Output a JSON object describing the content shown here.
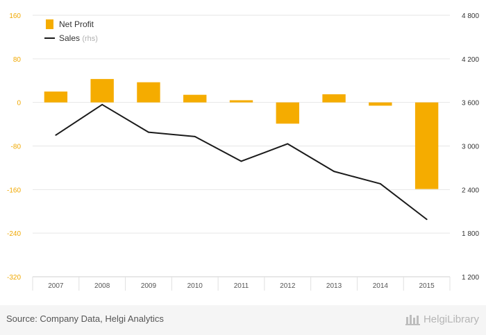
{
  "chart_data": {
    "type": "bar+line",
    "categories": [
      "2007",
      "2008",
      "2009",
      "2010",
      "2011",
      "2012",
      "2013",
      "2014",
      "2015"
    ],
    "series": [
      {
        "name": "Net Profit",
        "type": "bar",
        "axis": "left",
        "color": "#f5ac00",
        "values": [
          20,
          43,
          37,
          14,
          4,
          -39,
          15,
          -6,
          -159
        ]
      },
      {
        "name": "Sales",
        "legend_suffix": "(rhs)",
        "type": "line",
        "axis": "right",
        "color": "#1a1a1a",
        "values": [
          3150,
          3570,
          3190,
          3130,
          2790,
          3030,
          2650,
          2480,
          1990
        ]
      }
    ],
    "left_axis": {
      "ylim": [
        -320,
        160
      ],
      "ticks": [
        160,
        80,
        0,
        -80,
        -160,
        -240,
        -320
      ],
      "tick_labels": [
        "160",
        "80",
        "0",
        "-80",
        "-160",
        "-240",
        "-320"
      ],
      "color": "#f0a800"
    },
    "right_axis": {
      "ylim": [
        1200,
        4800
      ],
      "ticks": [
        4800,
        4200,
        3600,
        3000,
        2400,
        1800,
        1200
      ],
      "tick_labels": [
        "4 800",
        "4 200",
        "3 600",
        "3 000",
        "2 400",
        "1 800",
        "1 200"
      ],
      "color": "#333333"
    },
    "grid": true,
    "legend_position": "top-left"
  },
  "footer": {
    "source": "Source: Company Data, Helgi Analytics",
    "brand": "HelgiLibrary"
  }
}
